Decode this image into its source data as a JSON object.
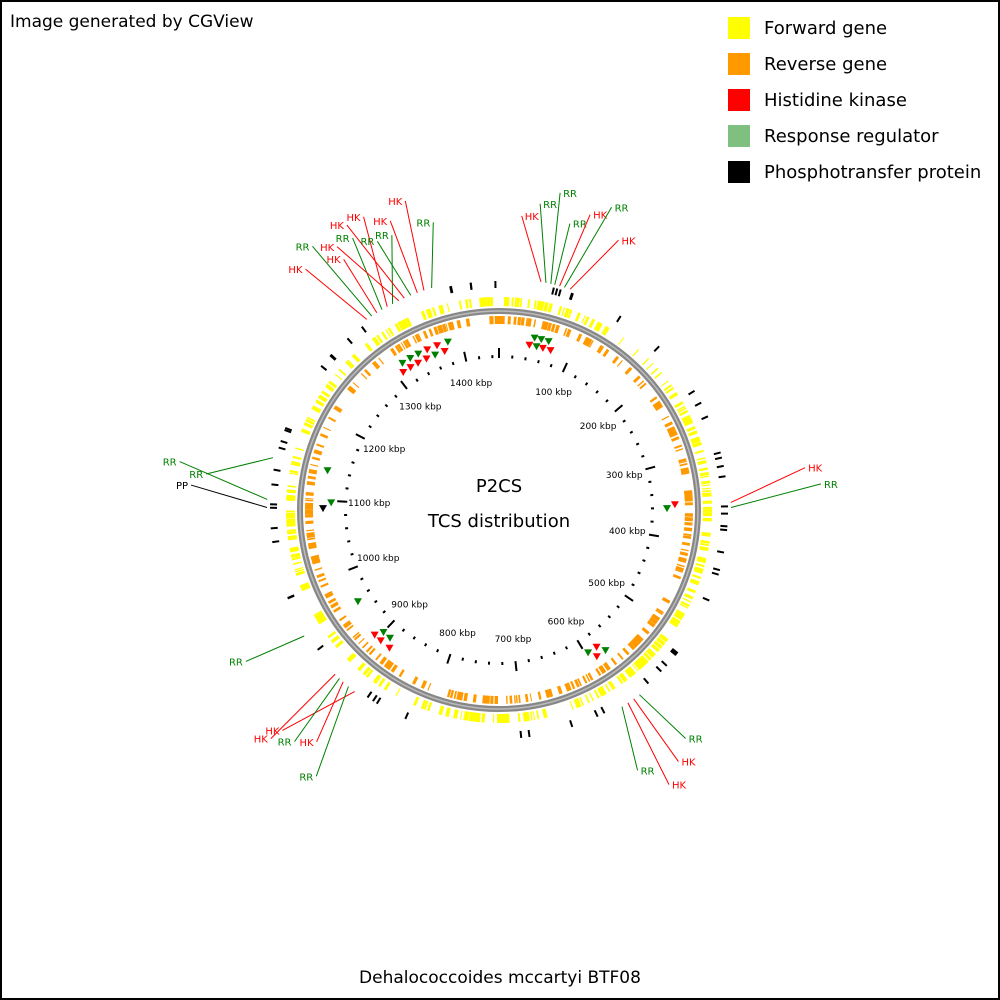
{
  "credit": "Image generated by CGView",
  "legend": {
    "items": [
      {
        "label": "Forward gene",
        "color": "#ffff00"
      },
      {
        "label": "Reverse gene",
        "color": "#ff9900"
      },
      {
        "label": "Histidine kinase",
        "color": "#ff0000"
      },
      {
        "label": "Response regulator",
        "color": "#7fbf7f"
      },
      {
        "label": "Phosphotransfer protein",
        "color": "#000000"
      }
    ]
  },
  "center": {
    "title": "P2CS",
    "subtitle": "TCS distribution"
  },
  "organism": "Dehalococcoides mccartyi BTF08",
  "genome": {
    "length_kbp": 1450,
    "ticks": [
      "100 kbp",
      "200 kbp",
      "300 kbp",
      "400 kbp",
      "500 kbp",
      "600 kbp",
      "700 kbp",
      "800 kbp",
      "900 kbp",
      "1000 kbp",
      "1100 kbp",
      "1200 kbp",
      "1300 kbp",
      "1400 kbp"
    ]
  },
  "colors": {
    "hk": "#ff0000",
    "rr": "#008000",
    "pp": "#000000",
    "backbone": "#888888"
  },
  "features": [
    {
      "type": "HK",
      "kbp": 42
    },
    {
      "type": "RR",
      "kbp": 47
    },
    {
      "type": "RR",
      "kbp": 52
    },
    {
      "type": "RR",
      "kbp": 56
    },
    {
      "type": "HK",
      "kbp": 61
    },
    {
      "type": "RR",
      "kbp": 66
    },
    {
      "type": "HK",
      "kbp": 72
    },
    {
      "type": "HK",
      "kbp": 355
    },
    {
      "type": "RR",
      "kbp": 360
    },
    {
      "type": "RR",
      "kbp": 575
    },
    {
      "type": "HK",
      "kbp": 582
    },
    {
      "type": "HK",
      "kbp": 589
    },
    {
      "type": "RR",
      "kbp": 596
    },
    {
      "type": "HK",
      "kbp": 880
    },
    {
      "type": "RR",
      "kbp": 888
    },
    {
      "type": "HK",
      "kbp": 895
    },
    {
      "type": "RR",
      "kbp": 900
    },
    {
      "type": "HK",
      "kbp": 906
    },
    {
      "type": "RR",
      "kbp": 955
    },
    {
      "type": "PP",
      "kbp": 1090
    },
    {
      "type": "RR",
      "kbp": 1098
    },
    {
      "type": "RR",
      "kbp": 1140
    },
    {
      "type": "HK",
      "kbp": 1310
    },
    {
      "type": "RR",
      "kbp": 1316
    },
    {
      "type": "HK",
      "kbp": 1322
    },
    {
      "type": "RR",
      "kbp": 1328
    },
    {
      "type": "HK",
      "kbp": 1334
    },
    {
      "type": "RR",
      "kbp": 1340
    },
    {
      "type": "HK",
      "kbp": 1347
    },
    {
      "type": "HK",
      "kbp": 1353
    },
    {
      "type": "RR",
      "kbp": 1360
    },
    {
      "type": "HK",
      "kbp": 1367
    },
    {
      "type": "HK",
      "kbp": 1374
    },
    {
      "type": "RR",
      "kbp": 1382
    }
  ],
  "callouts": [
    {
      "label": "HK",
      "type": "HK",
      "kbp": 42
    },
    {
      "label": "RR",
      "type": "RR",
      "kbp": 47
    },
    {
      "label": "RR",
      "type": "RR",
      "kbp": 52
    },
    {
      "label": "RR",
      "type": "RR",
      "kbp": 56
    },
    {
      "label": "HK",
      "type": "HK",
      "kbp": 61
    },
    {
      "label": "RR",
      "type": "RR",
      "kbp": 66
    },
    {
      "label": "HK",
      "type": "HK",
      "kbp": 72
    },
    {
      "label": "HK",
      "type": "HK",
      "kbp": 355
    },
    {
      "label": "RR",
      "type": "RR",
      "kbp": 360
    },
    {
      "label": "RR",
      "type": "RR",
      "kbp": 575
    },
    {
      "label": "HK",
      "type": "HK",
      "kbp": 582
    },
    {
      "label": "HK",
      "type": "HK",
      "kbp": 589
    },
    {
      "label": "RR",
      "type": "RR",
      "kbp": 596
    },
    {
      "label": "HK",
      "type": "HK",
      "kbp": 880
    },
    {
      "label": "RR",
      "type": "RR",
      "kbp": 888
    },
    {
      "label": "HK",
      "type": "HK",
      "kbp": 895
    },
    {
      "label": "RR",
      "type": "RR",
      "kbp": 900
    },
    {
      "label": "HK",
      "type": "HK",
      "kbp": 906
    },
    {
      "label": "RR",
      "type": "RR",
      "kbp": 955
    },
    {
      "label": "PP",
      "type": "PP",
      "kbp": 1090
    },
    {
      "label": "RR",
      "type": "RR",
      "kbp": 1098
    },
    {
      "label": "RR",
      "type": "RR",
      "kbp": 1140
    },
    {
      "label": "HK",
      "type": "HK",
      "kbp": 1310
    },
    {
      "label": "RR",
      "type": "RR",
      "kbp": 1316
    },
    {
      "label": "HK",
      "type": "HK",
      "kbp": 1322
    },
    {
      "label": "RR",
      "type": "RR",
      "kbp": 1328
    },
    {
      "label": "HK",
      "type": "HK",
      "kbp": 1334
    },
    {
      "label": "RR",
      "type": "RR",
      "kbp": 1340
    },
    {
      "label": "HK",
      "type": "HK",
      "kbp": 1347
    },
    {
      "label": "HK",
      "type": "HK",
      "kbp": 1353
    },
    {
      "label": "RR",
      "type": "RR",
      "kbp": 1360
    },
    {
      "label": "HK",
      "type": "HK",
      "kbp": 1367
    },
    {
      "label": "HK",
      "type": "HK",
      "kbp": 1374
    },
    {
      "label": "RR",
      "type": "RR",
      "kbp": 1382
    }
  ]
}
